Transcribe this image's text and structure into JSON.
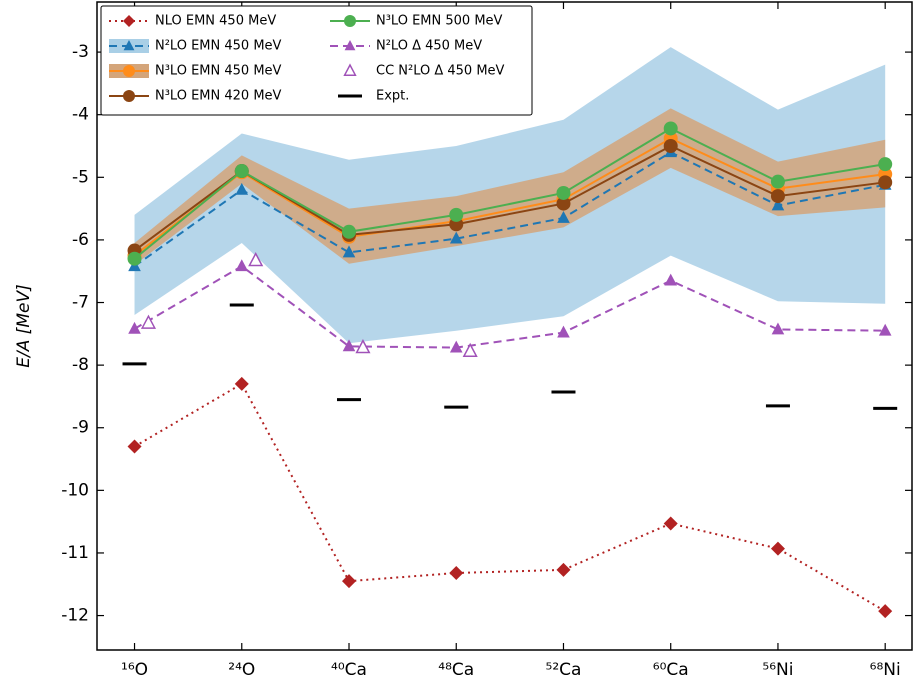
{
  "chart_data": {
    "type": "line",
    "y_label": "E/A [MeV]",
    "categories": [
      "¹⁶O",
      "²⁴O",
      "⁴⁰Ca",
      "⁴⁸Ca",
      "⁵²Ca",
      "⁶⁰Ca",
      "⁵⁶Ni",
      "⁶⁸Ni"
    ],
    "ylim": [
      -12.55,
      -2.2
    ],
    "yticks": [
      -3,
      -4,
      -5,
      -6,
      -7,
      -8,
      -9,
      -10,
      -11,
      -12
    ],
    "legend": "upper left",
    "series": [
      {
        "name": "NLO EMN 450 MeV",
        "color": "#b22222",
        "marker": "diamond",
        "linestyle": "dotted",
        "values": [
          -9.3,
          -8.3,
          -11.45,
          -11.32,
          -11.27,
          -10.53,
          -10.93,
          -11.93
        ]
      },
      {
        "name": "N²LO EMN 450 MeV",
        "color": "#1f77b4",
        "marker": "triangle",
        "linestyle": "dashed",
        "band_color": "#a9cfe6",
        "values": [
          -6.42,
          -5.2,
          -6.2,
          -5.98,
          -5.65,
          -4.6,
          -5.45,
          -5.12
        ],
        "lower": [
          -7.2,
          -6.05,
          -7.65,
          -7.45,
          -7.22,
          -6.25,
          -6.98,
          -7.02
        ],
        "upper": [
          -5.6,
          -4.3,
          -4.72,
          -4.5,
          -4.08,
          -2.92,
          -3.92,
          -3.2
        ]
      },
      {
        "name": "N³LO EMN 450 MeV",
        "color": "#ff8c1a",
        "marker": "circle",
        "linestyle": "solid",
        "band_color": "#d4a57a",
        "values": [
          -6.25,
          -4.92,
          -5.95,
          -5.7,
          -5.35,
          -4.38,
          -5.18,
          -4.95
        ],
        "lower": [
          -6.4,
          -5.1,
          -6.38,
          -6.1,
          -5.8,
          -4.85,
          -5.62,
          -5.48
        ],
        "upper": [
          -6.05,
          -4.65,
          -5.5,
          -5.3,
          -4.92,
          -3.9,
          -4.75,
          -4.4
        ]
      },
      {
        "name": "N³LO EMN 420 MeV",
        "color": "#8b4513",
        "marker": "circle",
        "linestyle": "solid",
        "values": [
          -6.17,
          -4.9,
          -5.92,
          -5.75,
          -5.42,
          -4.5,
          -5.3,
          -5.08
        ]
      },
      {
        "name": "N³LO EMN 500 MeV",
        "color": "#4caf50",
        "marker": "circle",
        "linestyle": "solid",
        "values": [
          -6.3,
          -4.9,
          -5.87,
          -5.6,
          -5.25,
          -4.22,
          -5.07,
          -4.79
        ]
      },
      {
        "name": "N²LO Δ 450 MeV",
        "color": "#a052b8",
        "marker": "triangle",
        "linestyle": "dashed",
        "values": [
          -7.42,
          -6.42,
          -7.7,
          -7.72,
          -7.48,
          -6.65,
          -7.43,
          -7.45
        ]
      },
      {
        "name": "CC N²LO Δ 450 MeV",
        "color": "#a052b8",
        "marker": "open-triangle",
        "linestyle": "none",
        "values": [
          -7.33,
          -6.33,
          -7.72,
          -7.78,
          null,
          null,
          null,
          null
        ]
      },
      {
        "name": "Expt.",
        "color": "#000000",
        "marker": "dash",
        "linestyle": "none",
        "values": [
          -7.98,
          -7.04,
          -8.55,
          -8.67,
          -8.43,
          null,
          -8.65,
          -8.69
        ]
      }
    ]
  }
}
